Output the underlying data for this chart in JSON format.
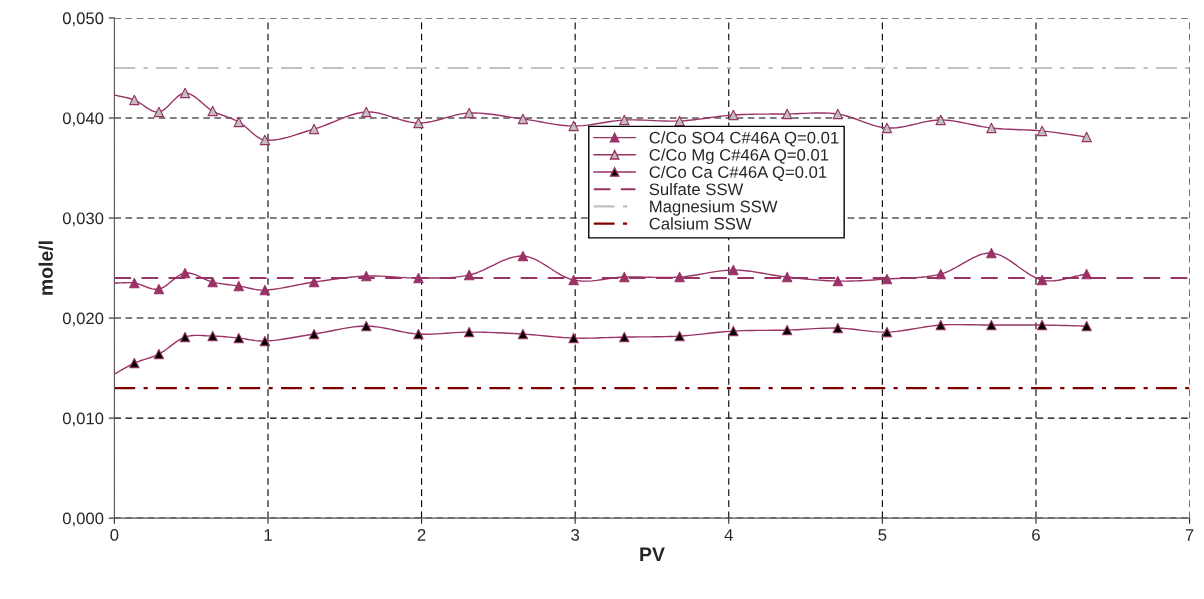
{
  "chart_data": {
    "type": "line",
    "xlabel": "PV",
    "ylabel": "mole/l",
    "x": [
      0,
      0.13,
      0.29,
      0.46,
      0.64,
      0.81,
      0.98,
      1.3,
      1.64,
      1.98,
      2.31,
      2.66,
      2.99,
      3.32,
      3.68,
      4.03,
      4.38,
      4.71,
      5.03,
      5.38,
      5.71,
      6.04,
      6.33
    ],
    "series": [
      {
        "name": "C/Co SO4 C#46A Q=0.01",
        "color": "#993366",
        "values": [
          0.0235,
          0.0235,
          0.0229,
          0.0245,
          0.0236,
          0.0232,
          0.0228,
          0.0236,
          0.0242,
          0.024,
          0.0243,
          0.0262,
          0.0238,
          0.0241,
          0.0241,
          0.0248,
          0.0241,
          0.0237,
          0.0239,
          0.0244,
          0.0265,
          0.0238,
          0.0244
        ]
      },
      {
        "name": "C/Co Mg C#46A Q=0.01",
        "color": "#c0c0c0",
        "values": [
          0.0423,
          0.0418,
          0.0406,
          0.0425,
          0.0407,
          0.0396,
          0.0378,
          0.0389,
          0.0406,
          0.0395,
          0.0405,
          0.0399,
          0.0392,
          0.0398,
          0.0397,
          0.0403,
          0.0404,
          0.0404,
          0.039,
          0.0398,
          0.039,
          0.0387,
          0.0381
        ]
      },
      {
        "name": "C/Co Ca C#46A Q=0.01",
        "color": "#000000",
        "values": [
          0.0144,
          0.0155,
          0.0164,
          0.0181,
          0.0182,
          0.018,
          0.0177,
          0.0184,
          0.0192,
          0.0184,
          0.0186,
          0.0184,
          0.018,
          0.0181,
          0.0182,
          0.0187,
          0.0188,
          0.019,
          0.0186,
          0.0193,
          0.0193,
          0.0193,
          0.0192
        ]
      }
    ],
    "ref_lines": [
      {
        "axis": "y",
        "value": 0.024,
        "label": "Sulfate SSW",
        "color": "#993366",
        "line_style": "dashed"
      },
      {
        "axis": "y",
        "value": 0.045,
        "label": "Magnesium SSW",
        "color": "#c0c0c0",
        "line_style": "dashdot"
      },
      {
        "axis": "y",
        "value": 0.013,
        "label": "Calsium SSW",
        "color": "#800000",
        "line_style": "dashdot"
      }
    ],
    "xlim": [
      0,
      7
    ],
    "xticks": [
      0,
      1,
      2,
      3,
      4,
      5,
      6,
      7
    ],
    "ylim": [
      0,
      0.05
    ],
    "yticks": [
      {
        "value": 0,
        "label": "0,000"
      },
      {
        "value": 0.01,
        "label": "0,010"
      },
      {
        "value": 0.02,
        "label": "0,020"
      },
      {
        "value": 0.03,
        "label": "0,030"
      },
      {
        "value": 0.04,
        "label": "0,040"
      },
      {
        "value": 0.05,
        "label": "0,050"
      }
    ],
    "grid": true,
    "legend": "top",
    "marker": "triangle",
    "line_style": "solid"
  }
}
